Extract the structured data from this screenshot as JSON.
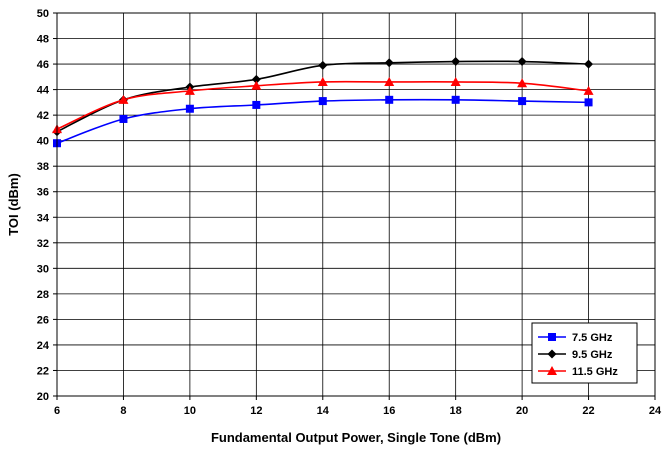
{
  "chart_data": {
    "type": "line",
    "title": "",
    "xlabel": "Fundamental Output Power, Single Tone (dBm)",
    "ylabel": "TOI (dBm)",
    "xlim": [
      6,
      24
    ],
    "ylim": [
      20,
      50
    ],
    "xticks": [
      6,
      8,
      10,
      12,
      14,
      16,
      18,
      20,
      22,
      24
    ],
    "yticks": [
      20,
      22,
      24,
      26,
      28,
      30,
      32,
      34,
      36,
      38,
      40,
      42,
      44,
      46,
      48,
      50
    ],
    "grid": true,
    "legend_position": "bottom-right",
    "x": [
      6,
      8,
      10,
      12,
      14,
      16,
      18,
      20,
      22
    ],
    "series": [
      {
        "name": "7.5 GHz",
        "color": "#0000FF",
        "marker": "square",
        "values": [
          39.8,
          41.7,
          42.5,
          42.8,
          43.1,
          43.2,
          43.2,
          43.1,
          43.0
        ]
      },
      {
        "name": "9.5 GHz",
        "color": "#000000",
        "marker": "diamond",
        "values": [
          40.7,
          43.2,
          44.2,
          44.8,
          45.9,
          46.1,
          46.2,
          46.2,
          46.0
        ]
      },
      {
        "name": "11.5 GHz",
        "color": "#FF0000",
        "marker": "triangle",
        "values": [
          40.9,
          43.2,
          43.9,
          44.3,
          44.6,
          44.6,
          44.6,
          44.5,
          43.9
        ]
      }
    ]
  }
}
